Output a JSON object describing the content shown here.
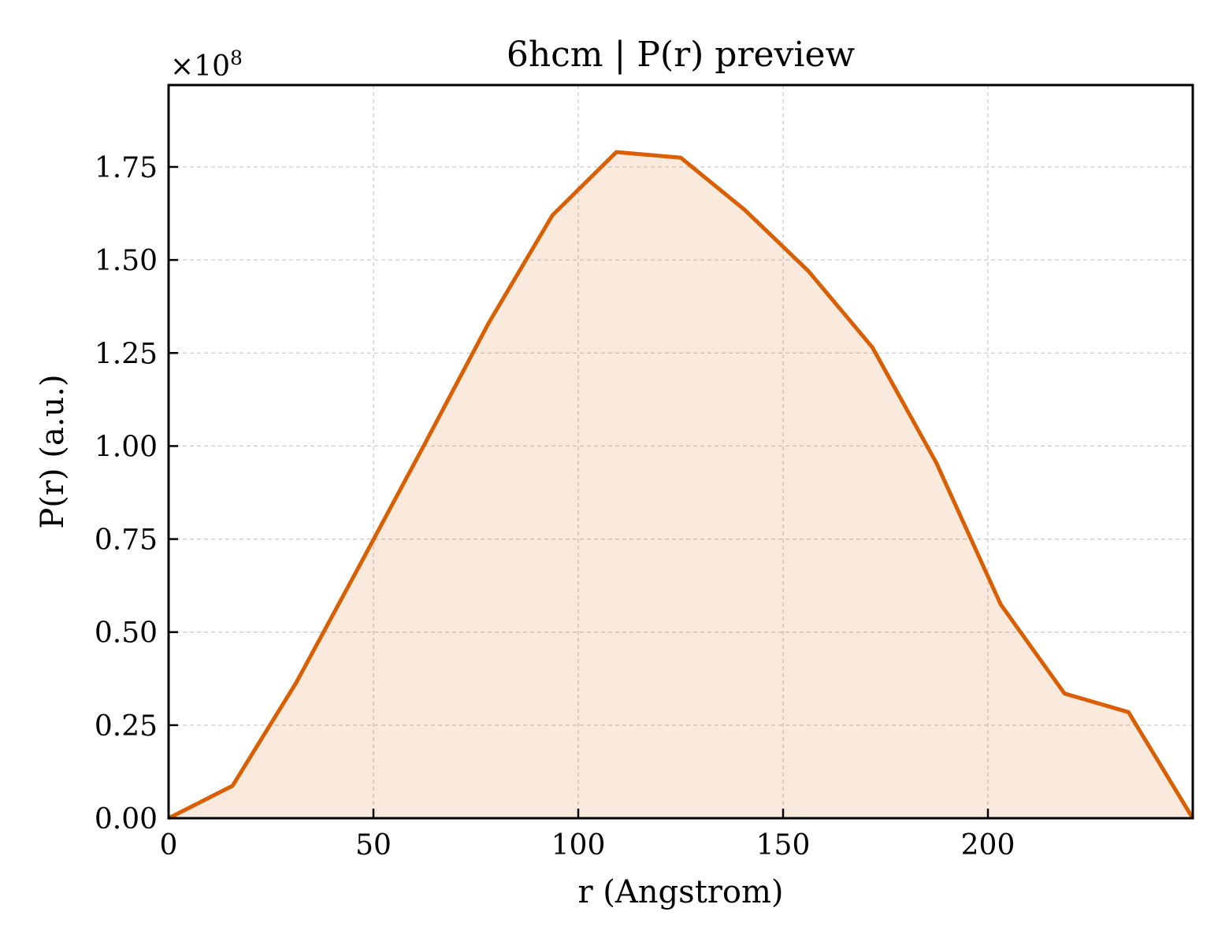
{
  "chart_data": {
    "type": "area",
    "title": "6hcm | P(r) preview",
    "xlabel": "r (Angstrom)",
    "ylabel": "P(r) (a.u.)",
    "y_multiplier_label": "×10",
    "y_multiplier_exponent": "8",
    "xlim": [
      0,
      250
    ],
    "ylim": [
      0,
      1.97
    ],
    "grid": true,
    "x_ticks": [
      0,
      50,
      100,
      150,
      200
    ],
    "x_tick_labels": [
      "0",
      "50",
      "100",
      "150",
      "200"
    ],
    "y_ticks": [
      0,
      0.25,
      0.5,
      0.75,
      1.0,
      1.25,
      1.5,
      1.75
    ],
    "y_tick_labels": [
      "0.00",
      "0.25",
      "0.50",
      "0.75",
      "1.00",
      "1.25",
      "1.50",
      "1.75"
    ],
    "series": [
      {
        "color": "#d95f02",
        "fill_color": "#d95f02",
        "x": [
          0,
          15.6,
          31.2,
          46.9,
          62.5,
          78.1,
          93.7,
          109.3,
          125.0,
          140.6,
          156.2,
          171.8,
          187.4,
          203.1,
          218.7,
          234.3,
          250
        ],
        "y": [
          0.0,
          0.087,
          0.365,
          0.685,
          1.005,
          1.33,
          1.62,
          1.79,
          1.775,
          1.635,
          1.47,
          1.265,
          0.955,
          0.575,
          0.335,
          0.285,
          0.0
        ]
      }
    ]
  }
}
